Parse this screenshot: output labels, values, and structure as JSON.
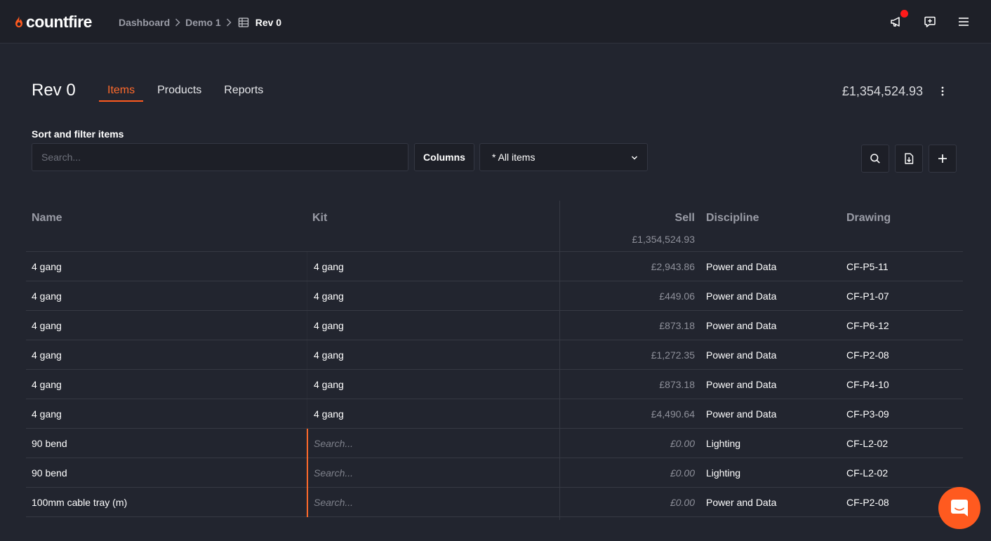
{
  "app": {
    "logo_text": "countfire",
    "brand_color": "#ff5a1f"
  },
  "breadcrumb": {
    "items": [
      "Dashboard",
      "Demo 1"
    ],
    "current": "Rev 0"
  },
  "header": {
    "title": "Rev 0",
    "tabs": [
      {
        "label": "Items",
        "active": true
      },
      {
        "label": "Products",
        "active": false
      },
      {
        "label": "Reports",
        "active": false
      }
    ],
    "grand_total": "£1,354,524.93"
  },
  "filter": {
    "label": "Sort and filter items",
    "search_placeholder": "Search...",
    "columns_label": "Columns",
    "view_selected": "* All items"
  },
  "table": {
    "headers": {
      "name": "Name",
      "kit": "Kit",
      "sell": "Sell",
      "discipline": "Discipline",
      "drawing": "Drawing"
    },
    "sell_total": "£1,354,524.93",
    "kit_placeholder": "Search...",
    "rows": [
      {
        "name": "4 gang",
        "kit": "4 gang",
        "sell": "£2,943.86",
        "discipline": "Power and Data",
        "drawing": "CF-P5-11"
      },
      {
        "name": "4 gang",
        "kit": "4 gang",
        "sell": "£449.06",
        "discipline": "Power and Data",
        "drawing": "CF-P1-07"
      },
      {
        "name": "4 gang",
        "kit": "4 gang",
        "sell": "£873.18",
        "discipline": "Power and Data",
        "drawing": "CF-P6-12"
      },
      {
        "name": "4 gang",
        "kit": "4 gang",
        "sell": "£1,272.35",
        "discipline": "Power and Data",
        "drawing": "CF-P2-08"
      },
      {
        "name": "4 gang",
        "kit": "4 gang",
        "sell": "£873.18",
        "discipline": "Power and Data",
        "drawing": "CF-P4-10"
      },
      {
        "name": "4 gang",
        "kit": "4 gang",
        "sell": "£4,490.64",
        "discipline": "Power and Data",
        "drawing": "CF-P3-09"
      },
      {
        "name": "90 bend",
        "kit": "",
        "sell": "£0.00",
        "discipline": "Lighting",
        "drawing": "CF-L2-02"
      },
      {
        "name": "90 bend",
        "kit": "",
        "sell": "£0.00",
        "discipline": "Lighting",
        "drawing": "CF-L2-02"
      },
      {
        "name": "100mm cable tray (m)",
        "kit": "",
        "sell": "£0.00",
        "discipline": "Power and Data",
        "drawing": "CF-P2-08"
      }
    ]
  },
  "icons": {
    "announcement": "megaphone-icon",
    "feedback": "chat-plus-icon",
    "menu": "hamburger-icon",
    "search": "search-icon",
    "export": "file-export-icon",
    "add": "plus-icon",
    "support": "chat-bubble-icon"
  }
}
